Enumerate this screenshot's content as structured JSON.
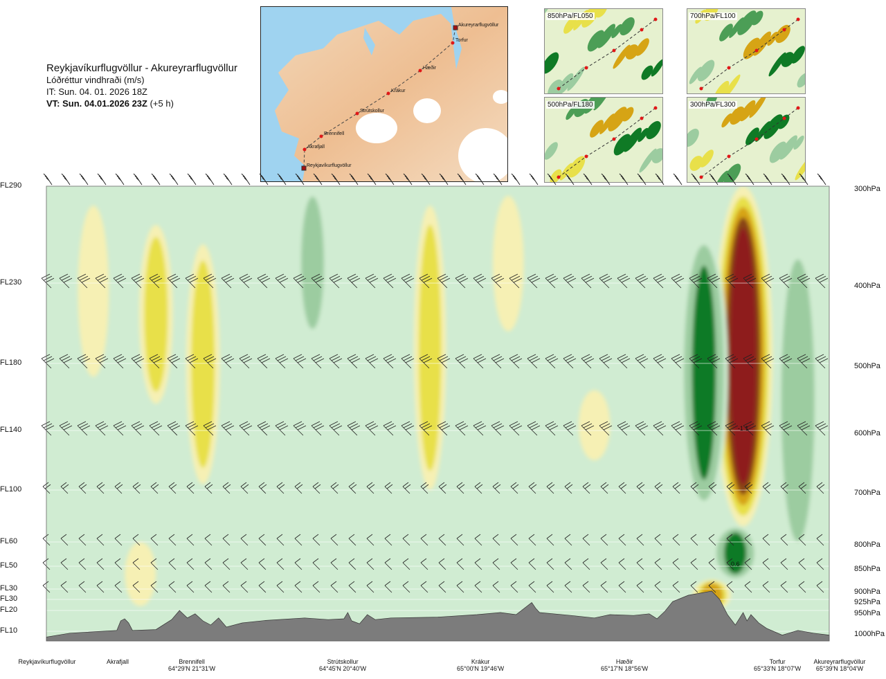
{
  "header": {
    "route": "Reykjavíkurflugvöllur - Akureyrarflugvöllur",
    "variable": "Lóðréttur vindhraði (m/s)",
    "issue_time": "IT: Sun. 04. 01. 2026 18Z",
    "valid_time": "VT: Sun. 04.01.2026 23Z",
    "lead": "(+5 h)"
  },
  "map_labels": [
    "Akureyrarflugvöllur",
    "Torfur",
    "Hæðir",
    "Krákur",
    "Strútskollur",
    "Brennifell",
    "Akrafjall",
    "Reykjavíkurflugvöllur"
  ],
  "thumbnails": [
    "850hPa/FL050",
    "700hPa/FL100",
    "500hPa/FL180",
    "300hPa/FL300"
  ],
  "waypoints": [
    {
      "name": "Reykjavíkurflugvöllur",
      "coord": ""
    },
    {
      "name": "Akrafjall",
      "coord": ""
    },
    {
      "name": "Brennifell",
      "coord": "64°29'N 21°31'W"
    },
    {
      "name": "Strútskollur",
      "coord": "64°45'N 20°40'W"
    },
    {
      "name": "Krákur",
      "coord": "65°00'N 19°46'W"
    },
    {
      "name": "Hæðir",
      "coord": "65°17'N 18°56'W"
    },
    {
      "name": "Torfur",
      "coord": "65°33'N 18°07'W"
    },
    {
      "name": "Akureyrarflugvöllur",
      "coord": "65°39'N 18°04'W"
    }
  ],
  "colors": {
    "down_strong": "#8e1a1a",
    "down_medium": "#8a4514",
    "down_light": "#d6a415",
    "down_weak": "#e8e04a",
    "down_faint": "#f6f0b4",
    "up_faint": "#d0ecd2",
    "up_light": "#9ccca0",
    "up_medium": "#4c9e56",
    "up_strong": "#0f7a25",
    "terrain": "#7c7c7c"
  },
  "chart_data": {
    "type": "heatmap",
    "title": "Lóðréttur vindhraði (m/s)",
    "xlabel": "",
    "ylabel": "",
    "flight_levels": [
      "FL290",
      "FL230",
      "FL180",
      "FL140",
      "FL100",
      "FL60",
      "FL50",
      "FL30",
      "FL30",
      "FL20",
      "FL10"
    ],
    "pressure_levels": [
      "300hPa",
      "400hPa",
      "500hPa",
      "600hPa",
      "700hPa",
      "800hPa",
      "850hPa",
      "900hPa",
      "925hPa",
      "950hPa",
      "1000hPa"
    ],
    "pressure_values": [
      300,
      400,
      500,
      600,
      700,
      800,
      850,
      900,
      925,
      950,
      1000
    ],
    "x_range": [
      0,
      1
    ],
    "contour_annotations": [
      {
        "text": "-1.1",
        "x": 0.89,
        "p": 600
      },
      {
        "text": "0.6",
        "x": 0.88,
        "p": 850
      }
    ],
    "features": [
      {
        "x": 0.89,
        "p_top": 300,
        "p_bottom": 770,
        "w": -1.1
      },
      {
        "x": 0.84,
        "p_top": 350,
        "p_bottom": 740,
        "w": 0.7
      },
      {
        "x": 0.96,
        "p_top": 360,
        "p_bottom": 830,
        "w": 0.5
      },
      {
        "x": 0.88,
        "p_top": 770,
        "p_bottom": 880,
        "w": 0.6
      },
      {
        "x": 0.2,
        "p_top": 360,
        "p_bottom": 690,
        "w": -0.2
      },
      {
        "x": 0.14,
        "p_top": 340,
        "p_bottom": 560,
        "w": -0.2
      },
      {
        "x": 0.06,
        "p_top": 320,
        "p_bottom": 520,
        "w": -0.1
      },
      {
        "x": 0.34,
        "p_top": 300,
        "p_bottom": 470,
        "w": 0.15
      },
      {
        "x": 0.49,
        "p_top": 320,
        "p_bottom": 700,
        "w": -0.15
      },
      {
        "x": 0.59,
        "p_top": 310,
        "p_bottom": 460,
        "w": -0.1
      },
      {
        "x": 0.73,
        "p_top": 300,
        "p_bottom": 430,
        "w": 0.1
      },
      {
        "x": 0.7,
        "p_top": 540,
        "p_bottom": 650,
        "w": -0.12
      },
      {
        "x": 0.41,
        "p_top": 480,
        "p_bottom": 620,
        "w": 0.12
      },
      {
        "x": 0.61,
        "p_top": 560,
        "p_bottom": 720,
        "w": 0.12
      },
      {
        "x": 0.85,
        "p_top": 880,
        "p_bottom": 950,
        "w": -0.35
      },
      {
        "x": 0.12,
        "p_top": 800,
        "p_bottom": 940,
        "w": -0.1
      },
      {
        "x": 0.3,
        "p_top": 820,
        "p_bottom": 950,
        "w": 0.1
      }
    ],
    "terrain_profile": [
      [
        0.0,
        1003
      ],
      [
        0.03,
        1001
      ],
      [
        0.09,
        998
      ],
      [
        0.095,
        975
      ],
      [
        0.1,
        970
      ],
      [
        0.105,
        980
      ],
      [
        0.11,
        998
      ],
      [
        0.14,
        996
      ],
      [
        0.16,
        972
      ],
      [
        0.17,
        950
      ],
      [
        0.18,
        968
      ],
      [
        0.19,
        958
      ],
      [
        0.2,
        975
      ],
      [
        0.21,
        985
      ],
      [
        0.22,
        968
      ],
      [
        0.23,
        990
      ],
      [
        0.25,
        980
      ],
      [
        0.28,
        974
      ],
      [
        0.33,
        968
      ],
      [
        0.36,
        972
      ],
      [
        0.38,
        970
      ],
      [
        0.385,
        955
      ],
      [
        0.39,
        975
      ],
      [
        0.4,
        982
      ],
      [
        0.41,
        960
      ],
      [
        0.42,
        972
      ],
      [
        0.44,
        968
      ],
      [
        0.5,
        966
      ],
      [
        0.55,
        960
      ],
      [
        0.58,
        955
      ],
      [
        0.6,
        960
      ],
      [
        0.62,
        932
      ],
      [
        0.625,
        945
      ],
      [
        0.63,
        955
      ],
      [
        0.67,
        962
      ],
      [
        0.7,
        968
      ],
      [
        0.72,
        960
      ],
      [
        0.75,
        962
      ],
      [
        0.77,
        958
      ],
      [
        0.78,
        970
      ],
      [
        0.79,
        952
      ],
      [
        0.8,
        930
      ],
      [
        0.82,
        915
      ],
      [
        0.85,
        905
      ],
      [
        0.86,
        925
      ],
      [
        0.87,
        960
      ],
      [
        0.88,
        985
      ],
      [
        0.89,
        955
      ],
      [
        0.895,
        975
      ],
      [
        0.9,
        960
      ],
      [
        0.91,
        980
      ],
      [
        0.92,
        993
      ],
      [
        0.94,
        1002
      ],
      [
        0.96,
        998
      ],
      [
        0.98,
        1001
      ],
      [
        1.0,
        1002
      ]
    ]
  }
}
